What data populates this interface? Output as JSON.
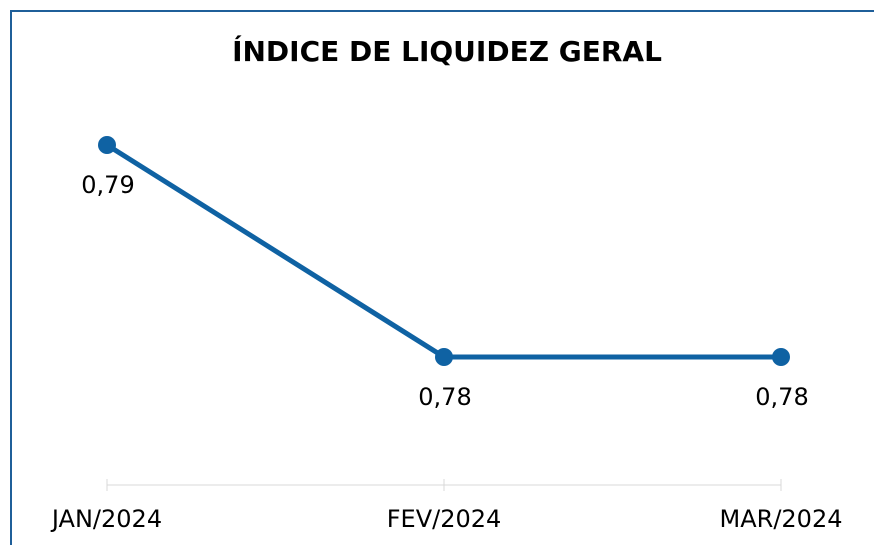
{
  "chart_data": {
    "type": "line",
    "title": "ÍNDICE DE LIQUIDEZ GERAL",
    "categories": [
      "JAN/2024",
      "FEV/2024",
      "MAR/2024"
    ],
    "series": [
      {
        "name": "Índice de Liquidez Geral",
        "color": "#0f62a3",
        "values": [
          0.79,
          0.78,
          0.78
        ],
        "value_labels": [
          "0,79",
          "0,78",
          "0,78"
        ]
      }
    ]
  }
}
